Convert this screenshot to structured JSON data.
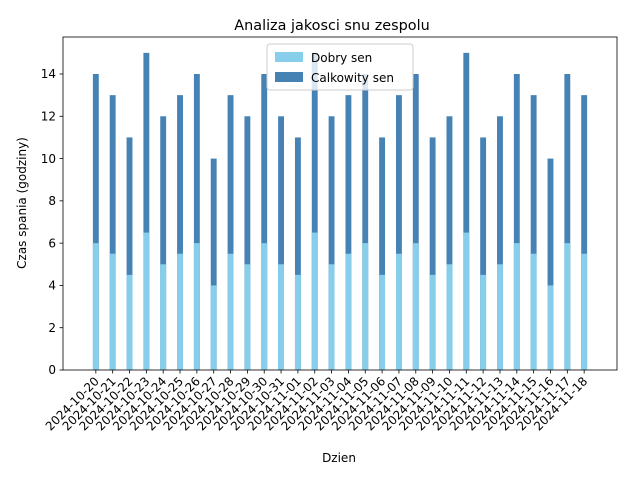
{
  "chart_data": {
    "type": "bar",
    "stacked": false,
    "title": "Analiza jakosci snu zespolu",
    "xlabel": "Dzien",
    "ylabel": "Czas spania (godziny)",
    "ylim": [
      0,
      15.75
    ],
    "yticks": [
      0,
      2,
      4,
      6,
      8,
      10,
      12,
      14
    ],
    "grid": false,
    "legend_position": "upper center",
    "categories": [
      "2024-10-20",
      "2024-10-21",
      "2024-10-22",
      "2024-10-23",
      "2024-10-24",
      "2024-10-25",
      "2024-10-26",
      "2024-10-27",
      "2024-10-28",
      "2024-10-29",
      "2024-10-30",
      "2024-10-31",
      "2024-11-01",
      "2024-11-02",
      "2024-11-03",
      "2024-11-04",
      "2024-11-05",
      "2024-11-06",
      "2024-11-07",
      "2024-11-08",
      "2024-11-09",
      "2024-11-10",
      "2024-11-11",
      "2024-11-12",
      "2024-11-13",
      "2024-11-14",
      "2024-11-15",
      "2024-11-16",
      "2024-11-17",
      "2024-11-18"
    ],
    "series": [
      {
        "name": "Calkowity sen",
        "color": "#4682b4",
        "values": [
          14,
          13,
          11,
          15,
          12,
          13,
          14,
          10,
          13,
          12,
          14,
          12,
          11,
          15,
          12,
          13,
          14,
          11,
          13,
          14,
          11,
          12,
          15,
          11,
          12,
          14,
          13,
          10,
          14,
          13
        ]
      },
      {
        "name": "Dobry sen",
        "color": "#87ceeb",
        "values": [
          6,
          5.5,
          4.5,
          6.5,
          5,
          5.5,
          6,
          4,
          5.5,
          5,
          6,
          5,
          4.5,
          6.5,
          5,
          5.5,
          6,
          4.5,
          5.5,
          6,
          4.5,
          5,
          6.5,
          4.5,
          5,
          6,
          5.5,
          4,
          6,
          5.5
        ]
      }
    ],
    "legend_order": [
      "Dobry sen",
      "Calkowity sen"
    ]
  }
}
